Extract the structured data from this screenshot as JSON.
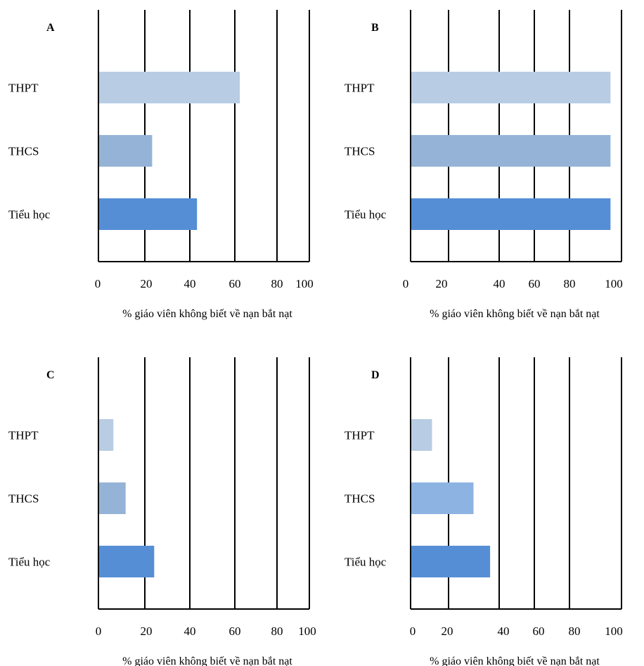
{
  "chart_data": [
    {
      "type": "bar",
      "panel_label": "A",
      "categories": [
        "THPT",
        "THCS",
        "Tiểu học"
      ],
      "values": [
        69,
        26,
        48
      ],
      "colors": [
        "#b8cce4",
        "#95b3d7",
        "#558ed5"
      ],
      "tick_labels": [
        "0",
        "20",
        "40",
        "60",
        "80",
        "100"
      ],
      "xlabel": "% giáo viên không biết về nạn bắt nạt"
    },
    {
      "type": "bar",
      "panel_label": "B",
      "categories": [
        "THPT",
        "THCS",
        "Tiểu học"
      ],
      "values": [
        88,
        88,
        88
      ],
      "colors": [
        "#b8cce4",
        "#95b3d7",
        "#558ed5"
      ],
      "tick_labels": [
        "0",
        "20",
        "40",
        "60",
        "80",
        "100"
      ],
      "xlabel": "% giáo viên không biết về nạn bắt nạt"
    },
    {
      "type": "bar",
      "panel_label": "C",
      "categories": [
        "THPT",
        "THCS",
        "Tiểu học"
      ],
      "values": [
        7,
        13,
        27
      ],
      "colors": [
        "#b8cce4",
        "#95b3d7",
        "#558ed5"
      ],
      "tick_labels": [
        "0",
        "20",
        "40",
        "60",
        "80",
        "100"
      ],
      "xlabel": "% giáo viên không biết về nạn bắt nạt"
    },
    {
      "type": "bar",
      "panel_label": "D",
      "categories": [
        "THPT",
        "THCS",
        "Tiểu học"
      ],
      "values": [
        10,
        30,
        38
      ],
      "colors": [
        "#b8cce4",
        "#8db3e2",
        "#558ed5"
      ],
      "tick_labels": [
        "0",
        "20",
        "40",
        "60",
        "80",
        "100"
      ],
      "xlabel": "% giáo viên không biết về nạn bắt nạt"
    }
  ]
}
